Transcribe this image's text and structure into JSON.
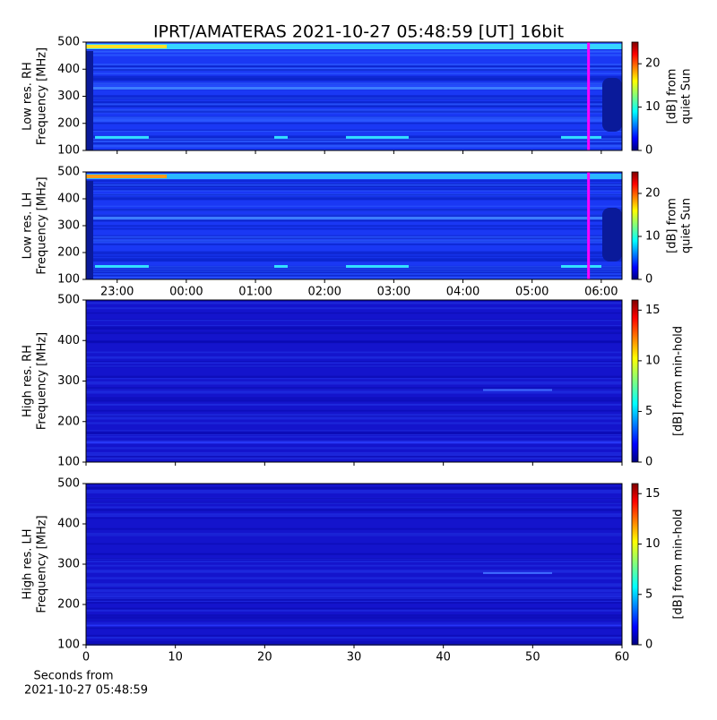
{
  "title": "IPRT/AMATERAS 2021-10-27 05:48:59 [UT]   16bit",
  "chart_data": [
    {
      "type": "heatmap",
      "ylabel": [
        "Low res. RH",
        "Frequency [MHz]"
      ],
      "ylim": [
        100,
        500
      ],
      "yticks": [
        100,
        200,
        300,
        400,
        500
      ],
      "xlim": [
        22.55,
        30.3
      ],
      "colormap": "jet",
      "colorbar": {
        "label": [
          "[dB] from",
          "quiet Sun"
        ],
        "lim": [
          0,
          25
        ],
        "ticks": [
          0,
          10,
          20
        ]
      },
      "marker_x": 29.816,
      "marker_color": "#ff00ff"
    },
    {
      "type": "heatmap",
      "ylabel": [
        "Low res. LH",
        "Frequency [MHz]"
      ],
      "ylim": [
        100,
        500
      ],
      "yticks": [
        100,
        200,
        300,
        400,
        500
      ],
      "xlim": [
        22.55,
        30.3
      ],
      "xticks": [
        {
          "value": 23,
          "label": "23:00"
        },
        {
          "value": 24,
          "label": "00:00"
        },
        {
          "value": 25,
          "label": "01:00"
        },
        {
          "value": 26,
          "label": "02:00"
        },
        {
          "value": 27,
          "label": "03:00"
        },
        {
          "value": 28,
          "label": "04:00"
        },
        {
          "value": 29,
          "label": "05:00"
        },
        {
          "value": 30,
          "label": "06:00"
        }
      ],
      "colormap": "jet",
      "colorbar": {
        "label": [
          "[dB] from",
          "quiet Sun"
        ],
        "lim": [
          0,
          25
        ],
        "ticks": [
          0,
          10,
          20
        ]
      },
      "marker_x": 29.816,
      "marker_color": "#ff00ff"
    },
    {
      "type": "heatmap",
      "ylabel": [
        "High res. RH",
        "Frequency [MHz]"
      ],
      "ylim": [
        100,
        500
      ],
      "yticks": [
        100,
        200,
        300,
        400,
        500
      ],
      "xlim": [
        0,
        60
      ],
      "colormap": "jet",
      "colorbar": {
        "label": [
          "[dB] from min-hold"
        ],
        "lim": [
          0,
          16
        ],
        "ticks": [
          0,
          5,
          10,
          15
        ]
      }
    },
    {
      "type": "heatmap",
      "ylabel": [
        "High res. LH",
        "Frequency [MHz]"
      ],
      "ylim": [
        100,
        500
      ],
      "yticks": [
        100,
        200,
        300,
        400,
        500
      ],
      "xlim": [
        0,
        60
      ],
      "xticks": [
        0,
        10,
        20,
        30,
        40,
        50,
        60
      ],
      "xlabel": [
        "Seconds from",
        "2021-10-27 05:48:59"
      ],
      "colormap": "jet",
      "colorbar": {
        "label": [
          "[dB] from min-hold"
        ],
        "lim": [
          0,
          16
        ],
        "ticks": [
          0,
          5,
          10,
          15
        ]
      }
    }
  ]
}
